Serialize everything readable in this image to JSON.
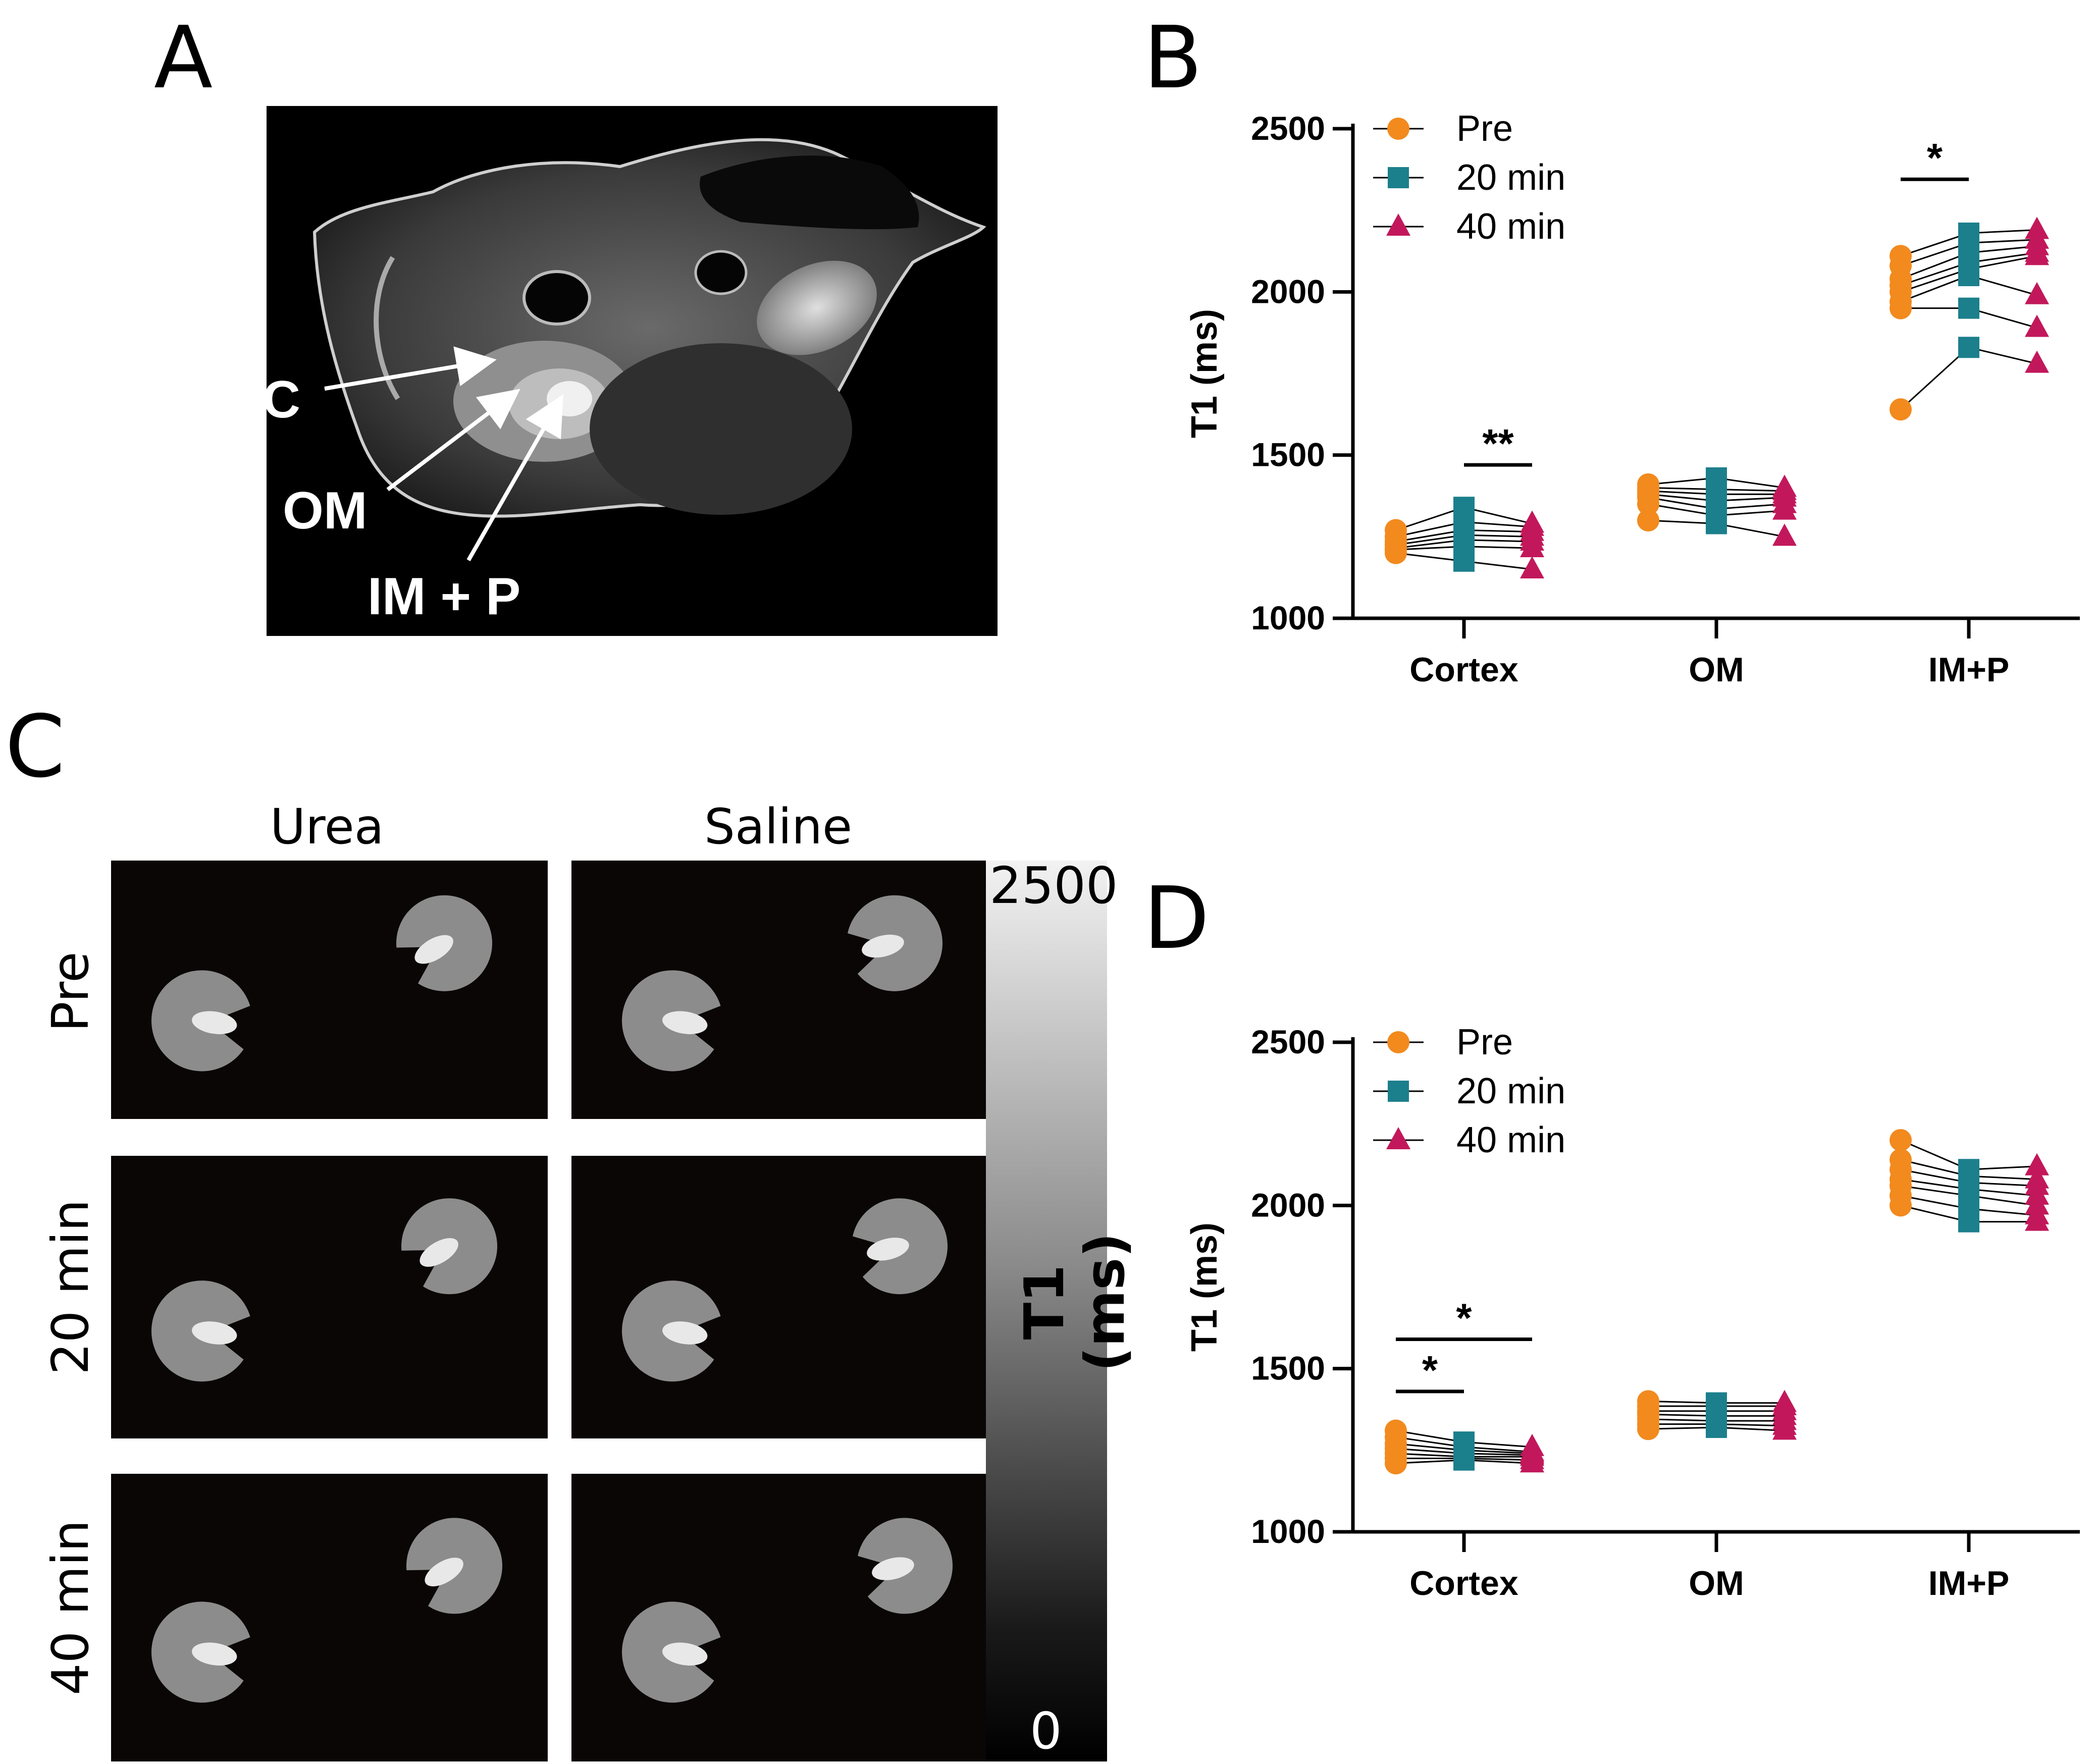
{
  "panels": {
    "a": {
      "letter": "A"
    },
    "b": {
      "letter": "B"
    },
    "c": {
      "letter": "C"
    },
    "d": {
      "letter": "D"
    }
  },
  "mri": {
    "labels": {
      "c": "C",
      "om": "OM",
      "imp": "IM + P"
    }
  },
  "maps": {
    "columns": [
      "Urea",
      "Saline"
    ],
    "rows": [
      "Pre",
      "20 min",
      "40 min"
    ],
    "colorbar": {
      "max": "2500",
      "min": "0",
      "label": "T1 (ms)"
    }
  },
  "colors": {
    "pre": "#F28A1E",
    "min20": "#1C7F8C",
    "min40": "#C2185B"
  },
  "chart_data": [
    {
      "panel": "B",
      "type": "scatter",
      "ylabel": "T1 (ms)",
      "ylim": [
        1000,
        2500
      ],
      "yticks": [
        1000,
        1500,
        2000,
        2500
      ],
      "categories": [
        "Cortex",
        "OM",
        "IM+P"
      ],
      "legend": [
        "Pre",
        "20 min",
        "40 min"
      ],
      "legend_position": "top-left",
      "groups": [
        {
          "category": "Cortex",
          "pre": [
            1270,
            1250,
            1235,
            1225,
            1215,
            1210,
            1200
          ],
          "min20": [
            1340,
            1295,
            1270,
            1255,
            1240,
            1220,
            1175
          ],
          "min40": [
            1290,
            1280,
            1265,
            1250,
            1235,
            1215,
            1150
          ]
        },
        {
          "category": "OM",
          "pre": [
            1410,
            1400,
            1390,
            1380,
            1370,
            1350,
            1300
          ],
          "min20": [
            1430,
            1395,
            1380,
            1360,
            1335,
            1315,
            1290
          ],
          "min40": [
            1400,
            1390,
            1380,
            1370,
            1350,
            1330,
            1250
          ]
        },
        {
          "category": "IM+P",
          "pre": [
            2110,
            2080,
            2040,
            2020,
            2000,
            1970,
            1950,
            1640
          ],
          "min20": [
            2180,
            2150,
            2120,
            2090,
            2070,
            2050,
            1950,
            1830
          ],
          "min40": [
            2190,
            2160,
            2140,
            2120,
            2110,
            1990,
            1890,
            1780
          ]
        }
      ],
      "significance": [
        {
          "label": "**",
          "group": "Cortex",
          "from": "min20",
          "to": "min40",
          "y": 1470
        },
        {
          "label": "*",
          "group": "IM+P",
          "from": "pre",
          "to": "min20",
          "y": 2345
        }
      ]
    },
    {
      "panel": "D",
      "type": "scatter",
      "ylabel": "T1 (ms)",
      "ylim": [
        1000,
        2500
      ],
      "yticks": [
        1000,
        1500,
        2000,
        2500
      ],
      "categories": [
        "Cortex",
        "OM",
        "IM+P"
      ],
      "legend": [
        "Pre",
        "20 min",
        "40 min"
      ],
      "legend_position": "top-left",
      "groups": [
        {
          "category": "Cortex",
          "pre": [
            1310,
            1290,
            1270,
            1255,
            1240,
            1225,
            1210
          ],
          "min20": [
            1275,
            1260,
            1250,
            1240,
            1230,
            1225,
            1220
          ],
          "min40": [
            1260,
            1245,
            1240,
            1235,
            1230,
            1220,
            1210
          ]
        },
        {
          "category": "OM",
          "pre": [
            1400,
            1385,
            1370,
            1360,
            1345,
            1330,
            1315
          ],
          "min20": [
            1395,
            1385,
            1370,
            1355,
            1340,
            1330,
            1320
          ],
          "min40": [
            1395,
            1385,
            1370,
            1355,
            1340,
            1325,
            1310
          ]
        },
        {
          "category": "IM+P",
          "pre": [
            2200,
            2140,
            2110,
            2080,
            2060,
            2030,
            2000
          ],
          "min20": [
            2110,
            2090,
            2070,
            2050,
            2030,
            1990,
            1950
          ],
          "min40": [
            2120,
            2080,
            2060,
            2030,
            2000,
            1970,
            1950
          ]
        }
      ],
      "significance": [
        {
          "label": "*",
          "group": "Cortex",
          "from": "pre",
          "to": "min20",
          "y": 1430
        },
        {
          "label": "*",
          "group": "Cortex",
          "from": "pre",
          "to": "min40",
          "y": 1590
        }
      ]
    }
  ]
}
